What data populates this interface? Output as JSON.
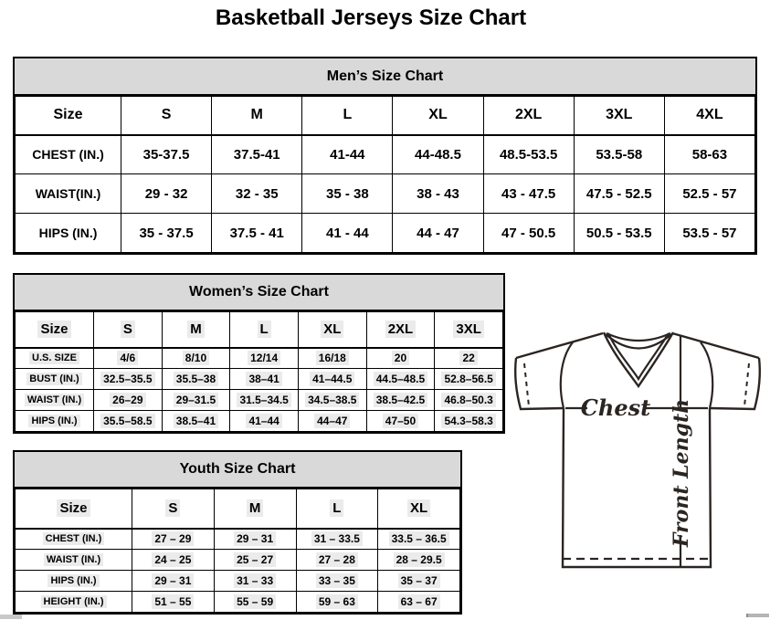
{
  "page": {
    "title": "Basketball Jerseys Size Chart"
  },
  "tables": {
    "men": {
      "title": "Men’s Size Chart",
      "size_label": "Size",
      "columns": [
        "S",
        "M",
        "L",
        "XL",
        "2XL",
        "3XL",
        "4XL"
      ],
      "rows": [
        {
          "label": "CHEST (IN.)",
          "values": [
            "35-37.5",
            "37.5-41",
            "41-44",
            "44-48.5",
            "48.5-53.5",
            "53.5-58",
            "58-63"
          ]
        },
        {
          "label": "WAIST(IN.)",
          "values": [
            "29 - 32",
            "32 - 35",
            "35 - 38",
            "38 - 43",
            "43 - 47.5",
            "47.5 - 52.5",
            "52.5 - 57"
          ]
        },
        {
          "label": "HIPS (IN.)",
          "values": [
            "35 - 37.5",
            "37.5 - 41",
            "41 - 44",
            "44 - 47",
            "47 - 50.5",
            "50.5 - 53.5",
            "53.5 - 57"
          ]
        }
      ]
    },
    "women": {
      "title": "Women’s Size Chart",
      "size_label": "Size",
      "columns": [
        "S",
        "M",
        "L",
        "XL",
        "2XL",
        "3XL"
      ],
      "rows": [
        {
          "label": "U.S. SIZE",
          "values": [
            "4/6",
            "8/10",
            "12/14",
            "16/18",
            "20",
            "22"
          ]
        },
        {
          "label": "BUST (IN.)",
          "values": [
            "32.5–35.5",
            "35.5–38",
            "38–41",
            "41–44.5",
            "44.5–48.5",
            "52.8–56.5"
          ]
        },
        {
          "label": "WAIST (IN.)",
          "values": [
            "26–29",
            "29–31.5",
            "31.5–34.5",
            "34.5–38.5",
            "38.5–42.5",
            "46.8–50.3"
          ]
        },
        {
          "label": "HIPS (IN.)",
          "values": [
            "35.5–58.5",
            "38.5–41",
            "41–44",
            "44–47",
            "47–50",
            "54.3–58.3"
          ]
        }
      ]
    },
    "youth": {
      "title": "Youth Size Chart",
      "size_label": "Size",
      "columns": [
        "S",
        "M",
        "L",
        "XL"
      ],
      "rows": [
        {
          "label": "CHEST (IN.)",
          "values": [
            "27 – 29",
            "29 – 31",
            "31 – 33.5",
            "33.5 – 36.5"
          ]
        },
        {
          "label": "WAIST (IN.)",
          "values": [
            "24 – 25",
            "25 – 27",
            "27 – 28",
            "28 – 29.5"
          ]
        },
        {
          "label": "HIPS (IN.)",
          "values": [
            "29 – 31",
            "31 – 33",
            "33 – 35",
            "35 – 37"
          ]
        },
        {
          "label": "HEIGHT (IN.)",
          "values": [
            "51 – 55",
            "55 – 59",
            "59 – 63",
            "63 – 67"
          ]
        }
      ]
    }
  },
  "diagram": {
    "chest_label": "Chest",
    "front_length_label": "Front Length"
  }
}
